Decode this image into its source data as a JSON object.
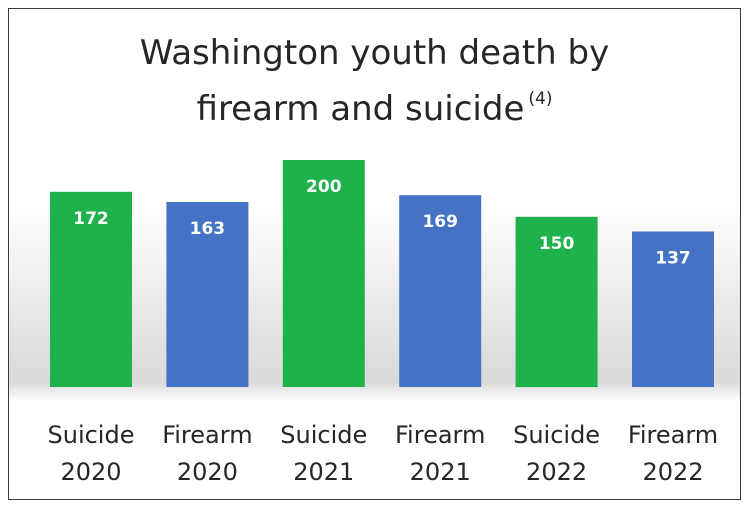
{
  "chart_data": {
    "type": "bar",
    "title": {
      "line1": "Washington youth death by",
      "line2": "firearm and suicide",
      "footnote": "(4)"
    },
    "categories": [
      [
        "Suicide",
        "2020"
      ],
      [
        "Firearm",
        "2020"
      ],
      [
        "Suicide",
        "2021"
      ],
      [
        "Firearm",
        "2021"
      ],
      [
        "Suicide",
        "2022"
      ],
      [
        "Firearm",
        "2022"
      ]
    ],
    "values": [
      172,
      163,
      200,
      169,
      150,
      137
    ],
    "colors": [
      "#1fb14c",
      "#4472c4",
      "#1fb14c",
      "#4472c4",
      "#1fb14c",
      "#4472c4"
    ],
    "data_labels": true,
    "legend": "none",
    "grid": false,
    "ylim": [
      0,
      200
    ]
  }
}
